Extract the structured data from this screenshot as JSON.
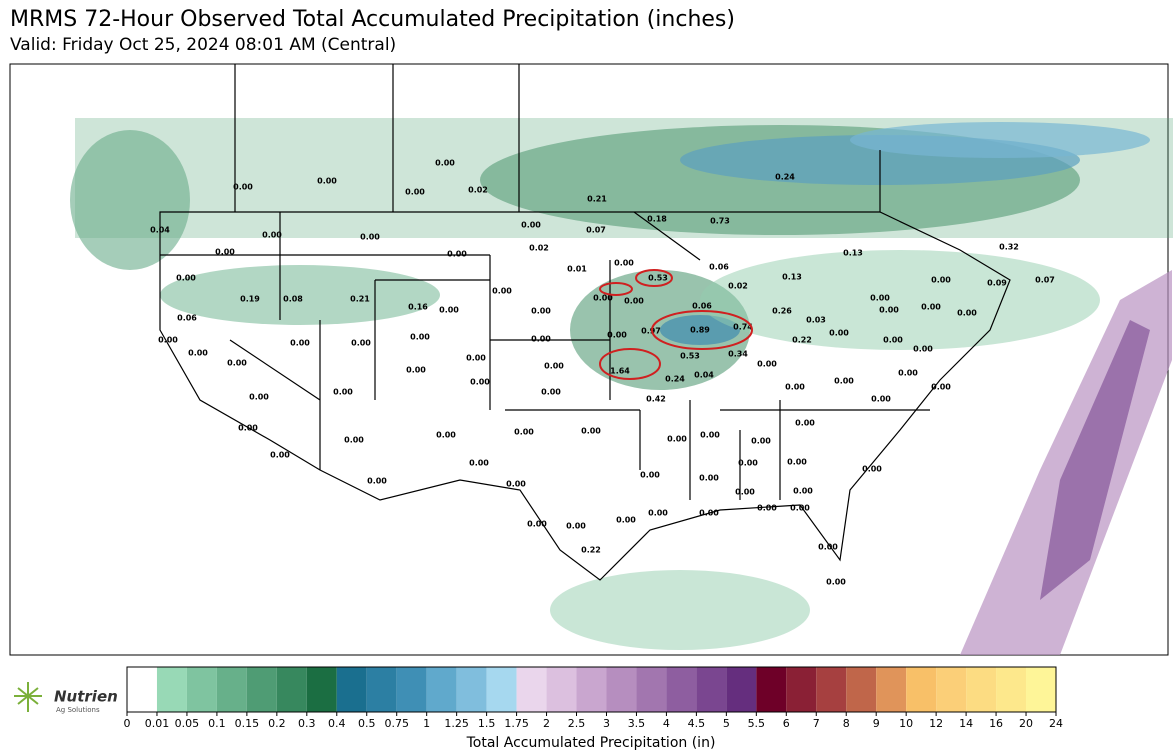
{
  "header": {
    "title": "MRMS 72-Hour Observed Total Accumulated Precipitation (inches)",
    "subtitle": "Valid: Friday Oct 25, 2024 08:01 AM (Central)"
  },
  "stations": [
    "0.00",
    "0.00",
    "0.00",
    "0.00",
    "0.02",
    "0.21",
    "0.24",
    "0.18",
    "0.73",
    "0.13",
    "0.32",
    "0.04",
    "0.00",
    "0.00",
    "0.00",
    "0.00",
    "0.00",
    "0.02",
    "0.07",
    "0.00",
    "0.19",
    "0.08",
    "0.21",
    "0.16",
    "0.00",
    "0.00",
    "0.01",
    "0.00",
    "0.53",
    "0.06",
    "0.02",
    "0.13",
    "0.00",
    "0.00",
    "0.06",
    "0.26",
    "0.06",
    "0.00",
    "0.00",
    "0.97",
    "0.89",
    "0.74",
    "0.03",
    "0.00",
    "0.00",
    "0.00",
    "0.00",
    "0.00",
    "0.00",
    "0.00",
    "0.00",
    "0.53",
    "0.34",
    "0.22",
    "1.64",
    "0.24",
    "0.04",
    "0.00",
    "0.00",
    "0.00",
    "0.00",
    "0.00",
    "0.00",
    "0.00",
    "0.42",
    "0.00",
    "0.00",
    "0.00",
    "0.00",
    "0.00",
    "0.00",
    "0.00",
    "0.00",
    "0.00",
    "0.00",
    "0.00",
    "0.00",
    "0.00",
    "0.00",
    "0.00",
    "0.00",
    "0.00",
    "0.00",
    "0.00",
    "0.00",
    "0.00",
    "0.00",
    "0.00",
    "0.00",
    "0.00",
    "0.00",
    "0.00",
    "0.22",
    "0.00",
    "0.00",
    "0.00",
    "0.00",
    "0.09",
    "0.07",
    "0.00",
    "0.00",
    "0.00",
    "0.00",
    "0.00",
    "0.00",
    "0.00",
    "0.00",
    "0.00",
    "0.00",
    "0.00"
  ],
  "colorbar": {
    "title": "Total Accumulated Precipitation (in)",
    "ticks": [
      0,
      0.01,
      0.05,
      0.1,
      0.15,
      0.2,
      0.3,
      0.4,
      0.5,
      0.75,
      1,
      1.25,
      1.5,
      1.75,
      2,
      2.5,
      3,
      3.5,
      4,
      4.5,
      5,
      5.5,
      6,
      7,
      8,
      9,
      10,
      12,
      14,
      16,
      20,
      24
    ],
    "colors": [
      "#ffffff",
      "#98d9b6",
      "#7fc4a0",
      "#67b08a",
      "#4f9c74",
      "#37885e",
      "#1b6e42",
      "#1a6f8f",
      "#2c7fa3",
      "#3f8fb5",
      "#60a9cc",
      "#80bedd",
      "#a6d8ef",
      "#ead6ec",
      "#dcc0df",
      "#c9a6cf",
      "#b68ebf",
      "#a276af",
      "#8e5ea0",
      "#7a4690",
      "#652e7e",
      "#6e0028",
      "#8a2035",
      "#a64040",
      "#c0664a",
      "#e0945a",
      "#f8c068",
      "#fbcf78",
      "#fcdc82",
      "#fde88c",
      "#fef598"
    ]
  },
  "logo": {
    "name": "Nutrien",
    "tagline": "Ag Solutions"
  }
}
